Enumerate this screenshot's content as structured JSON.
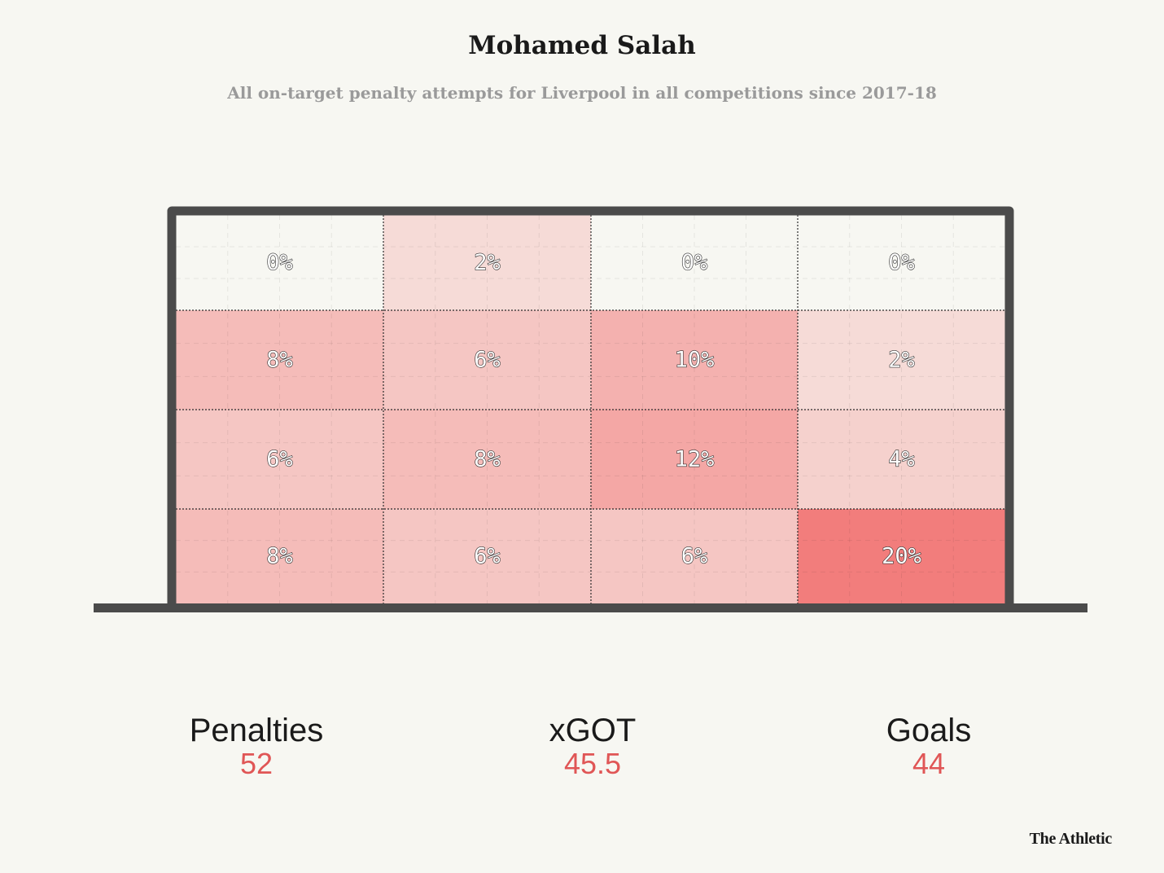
{
  "title": "Mohamed Salah",
  "subtitle": "All on-target penalty attempts for Liverpool in all competitions since 2017-18",
  "chart_data": {
    "type": "heatmap",
    "rows": 4,
    "cols": 4,
    "values": [
      [
        0,
        2,
        0,
        0
      ],
      [
        8,
        6,
        10,
        2
      ],
      [
        6,
        8,
        12,
        4
      ],
      [
        8,
        6,
        6,
        20
      ]
    ],
    "value_suffix": "%",
    "color_low": "#f7f7f2",
    "color_high": "#f27d7c"
  },
  "stats": {
    "penalties": {
      "label": "Penalties",
      "value": "52"
    },
    "xgot": {
      "label": "xGOT",
      "value": "45.5"
    },
    "goals": {
      "label": "Goals",
      "value": "44"
    }
  },
  "brand": "The Athletic",
  "colors": {
    "accent": "#e05656",
    "frame": "#4b4b4b",
    "background": "#f7f7f2"
  }
}
